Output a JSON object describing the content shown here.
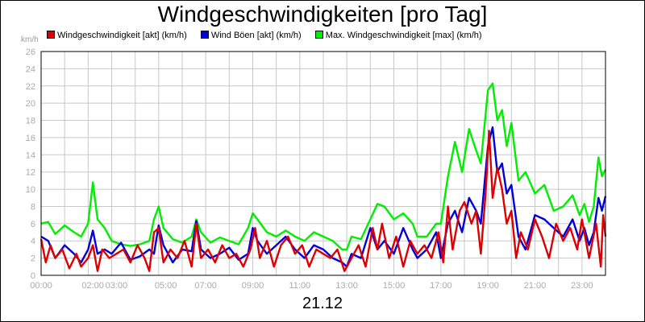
{
  "colors": {
    "akt": "#dd0000",
    "boeen": "#0000dd",
    "max": "#00ee00",
    "grid": "#c8c8c8"
  },
  "chart_data": {
    "type": "line",
    "title": "Windgeschwindigkeiten [pro Tag]",
    "date_label": "21.12",
    "ylabel": "km/h",
    "ylim": [
      0,
      26
    ],
    "y_ticks": [
      "0",
      "2",
      "4",
      "6",
      "8",
      "10",
      "12",
      "14",
      "16",
      "18",
      "20",
      "22",
      "24",
      "26"
    ],
    "xlim": [
      0,
      24
    ],
    "x_ticks": [
      {
        "x": 0,
        "label": "00:00"
      },
      {
        "x": 2.2,
        "label": "02:00"
      },
      {
        "x": 3.2,
        "label": "03:00"
      },
      {
        "x": 5.3,
        "label": "05:00"
      },
      {
        "x": 7.0,
        "label": "07:00"
      },
      {
        "x": 9.0,
        "label": "09:00"
      },
      {
        "x": 11.0,
        "label": "11:00"
      },
      {
        "x": 13.0,
        "label": "13:00"
      },
      {
        "x": 15.0,
        "label": "15:00"
      },
      {
        "x": 17.0,
        "label": "17:00"
      },
      {
        "x": 19.0,
        "label": "19:00"
      },
      {
        "x": 21.0,
        "label": "21:00"
      },
      {
        "x": 23.0,
        "label": "23:00"
      }
    ],
    "grid": true,
    "legend_position": "top-left",
    "series": [
      {
        "key": "max",
        "name": "Max. Windgeschwindigkeit [max] (km/h)",
        "x": [
          0,
          0.3,
          0.6,
          1.0,
          1.4,
          1.7,
          2.0,
          2.2,
          2.4,
          2.7,
          3.0,
          3.4,
          3.8,
          4.2,
          4.6,
          4.8,
          5.0,
          5.2,
          5.6,
          6.0,
          6.4,
          6.6,
          6.8,
          7.2,
          7.6,
          8.0,
          8.4,
          8.8,
          9.0,
          9.2,
          9.6,
          10.0,
          10.4,
          10.8,
          11.2,
          11.6,
          12.0,
          12.4,
          12.8,
          13.0,
          13.2,
          13.6,
          14.0,
          14.3,
          14.6,
          15.0,
          15.4,
          15.8,
          16.0,
          16.4,
          16.8,
          17.0,
          17.3,
          17.6,
          17.9,
          18.2,
          18.5,
          18.7,
          19.0,
          19.2,
          19.4,
          19.6,
          19.8,
          20.0,
          20.3,
          20.6,
          21.0,
          21.4,
          21.8,
          22.2,
          22.6,
          22.9,
          23.1,
          23.3,
          23.5,
          23.7,
          23.85,
          24
        ],
        "y": [
          6.0,
          6.2,
          4.8,
          5.8,
          5.0,
          4.5,
          6.0,
          10.8,
          6.5,
          5.5,
          4.0,
          3.6,
          3.4,
          3.6,
          4.0,
          6.5,
          8.0,
          5.5,
          4.2,
          3.8,
          4.5,
          6.5,
          5.0,
          3.8,
          4.4,
          4.0,
          3.6,
          5.5,
          7.2,
          6.5,
          5.0,
          4.5,
          5.2,
          4.5,
          4.0,
          5.0,
          4.5,
          4.0,
          3.0,
          3.0,
          4.5,
          4.2,
          6.5,
          8.3,
          8.0,
          6.5,
          7.2,
          6.0,
          4.5,
          4.5,
          6.0,
          6.0,
          11.5,
          15.5,
          12.0,
          17.0,
          14.5,
          13.0,
          21.5,
          22.3,
          18.0,
          19.2,
          15.0,
          17.7,
          11.0,
          12.0,
          9.5,
          10.5,
          7.5,
          8.0,
          9.3,
          7.0,
          8.3,
          6.2,
          8.0,
          13.7,
          11.5,
          12.3
        ]
      },
      {
        "key": "boeen",
        "name": "Wind Böen [akt] (km/h)",
        "x": [
          0,
          0.3,
          0.6,
          1.0,
          1.4,
          1.7,
          2.0,
          2.2,
          2.4,
          2.7,
          3.0,
          3.4,
          3.8,
          4.2,
          4.6,
          4.8,
          5.0,
          5.2,
          5.6,
          6.0,
          6.4,
          6.6,
          6.8,
          7.2,
          7.6,
          8.0,
          8.4,
          8.8,
          9.0,
          9.2,
          9.6,
          10.0,
          10.4,
          10.8,
          11.2,
          11.6,
          12.0,
          12.4,
          12.8,
          13.0,
          13.2,
          13.6,
          14.0,
          14.3,
          14.6,
          15.0,
          15.4,
          15.8,
          16.0,
          16.4,
          16.8,
          17.0,
          17.3,
          17.6,
          17.9,
          18.2,
          18.5,
          18.7,
          19.0,
          19.2,
          19.4,
          19.6,
          19.8,
          20.0,
          20.3,
          20.6,
          21.0,
          21.4,
          21.8,
          22.2,
          22.6,
          22.9,
          23.1,
          23.3,
          23.5,
          23.7,
          23.85,
          24
        ],
        "y": [
          4.5,
          4.0,
          2.0,
          3.5,
          2.5,
          1.5,
          3.0,
          5.2,
          2.5,
          3.0,
          2.5,
          3.8,
          1.8,
          2.2,
          3.0,
          2.5,
          5.8,
          3.5,
          1.5,
          3.0,
          2.8,
          6.3,
          3.0,
          2.0,
          2.5,
          3.2,
          1.8,
          2.5,
          5.5,
          4.0,
          2.5,
          3.5,
          4.5,
          3.0,
          2.0,
          3.5,
          3.0,
          2.0,
          1.5,
          1.0,
          2.5,
          2.0,
          5.5,
          3.0,
          4.0,
          2.5,
          5.5,
          3.0,
          2.0,
          3.0,
          5.0,
          2.0,
          6.0,
          7.5,
          5.0,
          9.0,
          7.5,
          6.0,
          15.0,
          17.2,
          12.0,
          13.0,
          9.5,
          10.5,
          4.5,
          3.0,
          7.0,
          6.5,
          5.5,
          4.5,
          6.5,
          4.0,
          5.5,
          3.5,
          5.0,
          9.0,
          7.5,
          9.2
        ]
      },
      {
        "key": "akt",
        "name": "Windgeschwindigkeit [akt] (km/h)",
        "x": [
          0,
          0.2,
          0.4,
          0.6,
          0.9,
          1.2,
          1.5,
          1.7,
          2.0,
          2.2,
          2.4,
          2.6,
          2.9,
          3.2,
          3.5,
          3.8,
          4.1,
          4.4,
          4.6,
          4.8,
          5.0,
          5.2,
          5.5,
          5.8,
          6.1,
          6.4,
          6.6,
          6.8,
          7.1,
          7.4,
          7.7,
          8.0,
          8.3,
          8.6,
          8.9,
          9.1,
          9.3,
          9.6,
          9.9,
          10.2,
          10.5,
          10.8,
          11.1,
          11.4,
          11.7,
          12.0,
          12.3,
          12.6,
          12.9,
          13.2,
          13.5,
          13.8,
          14.1,
          14.3,
          14.5,
          14.8,
          15.1,
          15.4,
          15.7,
          16.0,
          16.3,
          16.6,
          16.9,
          17.1,
          17.3,
          17.5,
          17.8,
          18.0,
          18.3,
          18.5,
          18.7,
          18.9,
          19.05,
          19.2,
          19.4,
          19.6,
          19.8,
          20.0,
          20.2,
          20.4,
          20.7,
          21.0,
          21.3,
          21.6,
          21.9,
          22.2,
          22.5,
          22.8,
          23.0,
          23.3,
          23.6,
          23.8,
          23.9,
          24
        ],
        "y": [
          4.2,
          1.5,
          3.5,
          2.0,
          3.0,
          0.8,
          2.5,
          1.0,
          2.0,
          3.5,
          0.5,
          3.0,
          2.0,
          2.5,
          3.0,
          1.5,
          3.5,
          2.0,
          0.5,
          5.0,
          5.5,
          1.5,
          3.0,
          2.0,
          4.0,
          1.0,
          6.0,
          2.0,
          3.0,
          1.5,
          3.5,
          2.0,
          2.5,
          1.0,
          3.0,
          5.5,
          2.0,
          4.0,
          1.0,
          3.5,
          4.5,
          2.5,
          3.5,
          1.0,
          3.0,
          2.5,
          2.0,
          3.0,
          0.5,
          2.0,
          3.5,
          1.0,
          5.5,
          3.0,
          6.0,
          2.0,
          4.5,
          1.0,
          4.0,
          2.5,
          3.5,
          2.0,
          5.0,
          1.5,
          8.0,
          3.0,
          7.5,
          8.5,
          6.0,
          7.5,
          2.5,
          9.5,
          16.8,
          9.0,
          12.5,
          10.0,
          6.0,
          7.5,
          2.0,
          5.0,
          3.0,
          6.5,
          4.5,
          2.0,
          6.0,
          4.0,
          5.5,
          3.0,
          6.5,
          2.0,
          6.0,
          1.0,
          7.0,
          4.5
        ]
      }
    ]
  }
}
